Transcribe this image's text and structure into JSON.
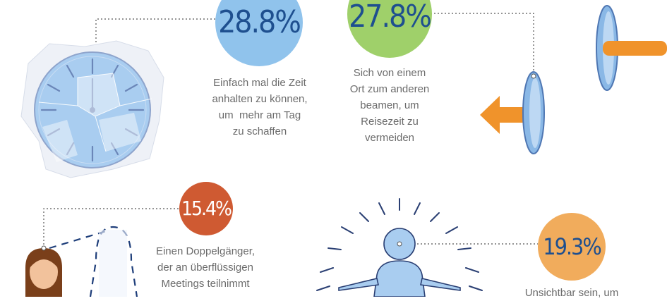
{
  "stats": [
    {
      "id": "time",
      "value": "28.8%",
      "caption": "Einfach mal die Zeit\nanhalten zu können,\num  mehr am Tag\nzu schaffen",
      "color": "#90c3ec",
      "text_color": "#1e4f8f"
    },
    {
      "id": "beam",
      "value": "27.8%",
      "caption": "Sich von einem\nOrt zum anderen\nbeamen, um\nReisezeit zu\nvermeiden",
      "color": "#9fd06a",
      "text_color": "#1e4f8f"
    },
    {
      "id": "double",
      "value": "15.4%",
      "caption": "Einen Doppelgänger,\nder an überflüssigen\nMeetings teilnimmt",
      "color": "#cf5a32",
      "text_color": "#ffffff"
    },
    {
      "id": "invisible",
      "value": "19.3%",
      "caption": "Unsichtbar sein, um",
      "color": "#f1ac5c",
      "text_color": "#1e4f8f"
    }
  ],
  "colors": {
    "icon_blue": "#a9cdf0",
    "icon_stroke": "#6b86b8",
    "arrow_orange": "#f0932b",
    "line_gray": "#555555"
  },
  "icons": [
    "broken-clock-icon",
    "lens-icon",
    "arrow-left-icon",
    "arrow-right-icon",
    "person-icon",
    "ghost-double-icon",
    "glowing-person-icon"
  ]
}
